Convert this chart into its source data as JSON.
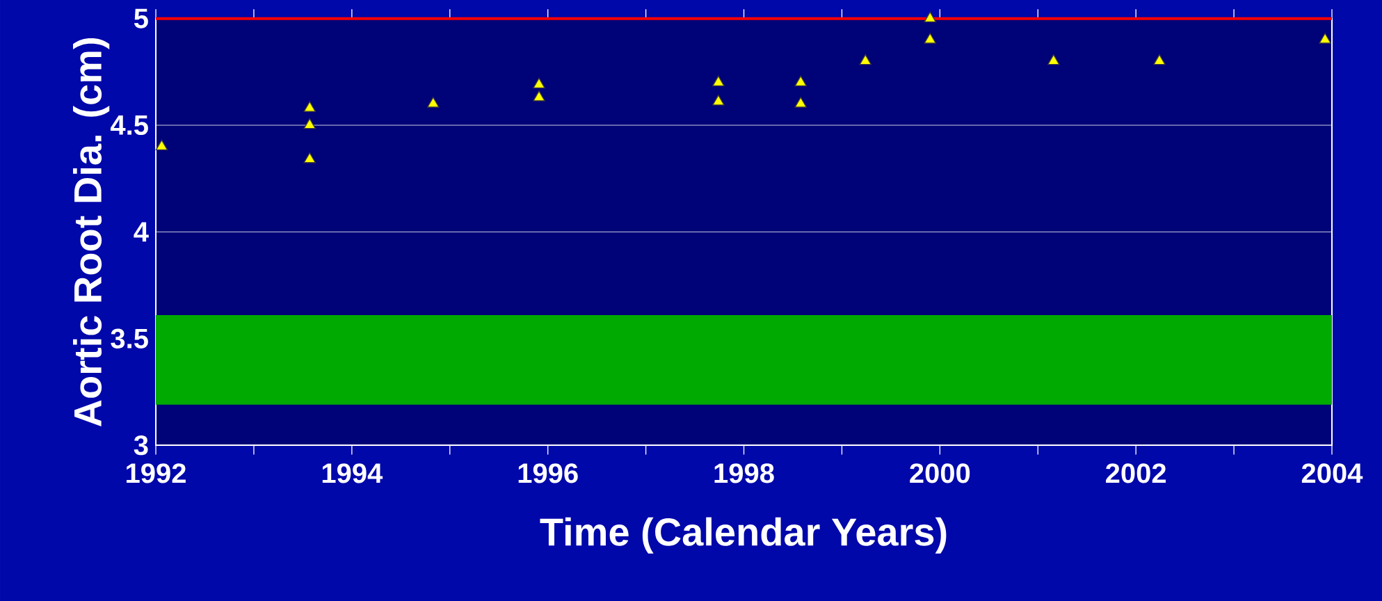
{
  "chart_data": {
    "type": "scatter",
    "xlabel": "Time (Calendar Years)",
    "ylabel": "Aortic Root Dia. (cm)",
    "x": [
      1992.06,
      1993.57,
      1993.57,
      1993.57,
      1994.83,
      1995.91,
      1995.91,
      1997.74,
      1997.74,
      1998.58,
      1998.58,
      1999.24,
      1999.9,
      1999.9,
      2001.16,
      2002.24,
      2003.93
    ],
    "series": [
      {
        "color": "#ffff00",
        "values": [
          4.4,
          4.58,
          4.5,
          4.34,
          4.6,
          4.69,
          4.63,
          4.7,
          4.61,
          4.7,
          4.6,
          4.8,
          5.0,
          4.9,
          4.8,
          4.8,
          4.9
        ]
      }
    ],
    "marker": "triangle",
    "xlim": [
      1992,
      2004
    ],
    "xticks": [
      1992,
      {
        "value": 1993,
        "label": null
      },
      1994,
      {
        "value": 1995,
        "label": null
      },
      1996,
      {
        "value": 1997,
        "label": null
      },
      1998,
      {
        "value": 1999,
        "label": null
      },
      2000,
      {
        "value": 2001,
        "label": null
      },
      2002,
      {
        "value": 2003,
        "label": null
      },
      2004
    ],
    "ylim": [
      3,
      5
    ],
    "yticks": [
      3,
      3.5,
      4,
      4.5,
      5
    ],
    "grid": "y",
    "ref_lines": [
      {
        "axis": "y",
        "value": 5,
        "color": "#ff0000"
      }
    ],
    "bands": [
      {
        "axis": "y",
        "from": 3.19,
        "to": 3.61,
        "color": "#00aa00"
      }
    ]
  }
}
